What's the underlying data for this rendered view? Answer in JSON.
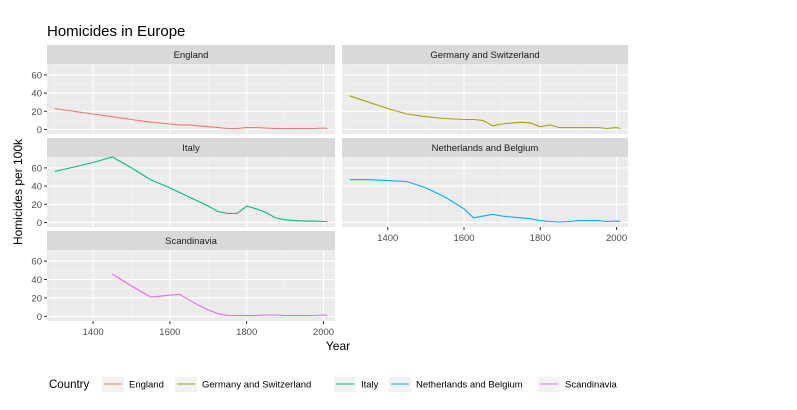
{
  "title": "Homicides in Europe",
  "chart_data": {
    "type": "line",
    "title": "Homicides in Europe",
    "xlabel": "Year",
    "ylabel": "Homicides per 100k",
    "xlim": [
      1280,
      2030
    ],
    "ylim": [
      -5,
      72
    ],
    "x_ticks": [
      1400,
      1600,
      1800,
      2000
    ],
    "y_ticks": [
      0,
      20,
      40,
      60
    ],
    "grid": true,
    "legend_position": "bottom",
    "legend_title": "Country",
    "series": [
      {
        "name": "England",
        "color": "#F8766D",
        "x": [
          1300,
          1350,
          1400,
          1450,
          1500,
          1550,
          1600,
          1625,
          1650,
          1675,
          1700,
          1725,
          1750,
          1775,
          1800,
          1825,
          1850,
          1875,
          1900,
          1925,
          1950,
          1975,
          2000,
          2010
        ],
        "y": [
          23,
          20,
          17,
          14,
          11,
          8,
          6,
          5,
          5,
          4,
          3,
          2,
          1,
          1,
          2,
          2,
          1.5,
          1,
          1,
          1,
          1,
          1,
          1.5,
          1
        ]
      },
      {
        "name": "Germany and Switzerland",
        "color": "#A3A500",
        "x": [
          1300,
          1350,
          1400,
          1450,
          1500,
          1550,
          1600,
          1625,
          1650,
          1675,
          1700,
          1725,
          1750,
          1775,
          1800,
          1825,
          1850,
          1875,
          1900,
          1925,
          1950,
          1975,
          2000,
          2010
        ],
        "y": [
          37,
          30,
          23,
          17,
          14,
          12,
          11,
          11,
          10,
          4,
          6,
          7,
          8,
          7,
          3,
          5,
          2,
          2,
          2,
          2,
          2,
          1,
          2,
          1
        ]
      },
      {
        "name": "Italy",
        "color": "#00BF7D",
        "x": [
          1300,
          1350,
          1400,
          1450,
          1500,
          1550,
          1600,
          1625,
          1650,
          1675,
          1700,
          1725,
          1750,
          1775,
          1800,
          1825,
          1850,
          1875,
          1900,
          1925,
          1950,
          1975,
          2000,
          2010
        ],
        "y": [
          56,
          61,
          66,
          72,
          60,
          47,
          38,
          33,
          28,
          23,
          18,
          12,
          10,
          10,
          18,
          15,
          11,
          5,
          3,
          2,
          1.5,
          1.5,
          1,
          1
        ]
      },
      {
        "name": "Netherlands and Belgium",
        "color": "#00B0F6",
        "x": [
          1300,
          1350,
          1400,
          1450,
          1500,
          1550,
          1600,
          1625,
          1650,
          1675,
          1700,
          1725,
          1750,
          1775,
          1800,
          1825,
          1850,
          1875,
          1900,
          1925,
          1950,
          1975,
          2000,
          2010
        ],
        "y": [
          47,
          47,
          46,
          45,
          38,
          28,
          15,
          5,
          7,
          9,
          7,
          6,
          5,
          4,
          2,
          1,
          0.5,
          1,
          2,
          2,
          2,
          1,
          1.5,
          1
        ]
      },
      {
        "name": "Scandinavia",
        "color": "#E76BF3",
        "x": [
          1450,
          1500,
          1550,
          1600,
          1625,
          1650,
          1675,
          1700,
          1725,
          1750,
          1775,
          1800,
          1825,
          1850,
          1875,
          1900,
          1925,
          1950,
          1975,
          2000,
          2010
        ],
        "y": [
          46,
          33,
          21,
          23,
          24,
          18,
          12,
          7,
          3,
          1,
          1,
          1,
          1,
          1.5,
          1.5,
          1,
          1,
          1,
          1,
          1.5,
          1
        ]
      }
    ],
    "facets": [
      {
        "label": "England",
        "series": 0
      },
      {
        "label": "Germany and Switzerland",
        "series": 1
      },
      {
        "label": "Italy",
        "series": 2
      },
      {
        "label": "Netherlands and Belgium",
        "series": 3
      },
      {
        "label": "Scandinavia",
        "series": 4
      }
    ]
  }
}
